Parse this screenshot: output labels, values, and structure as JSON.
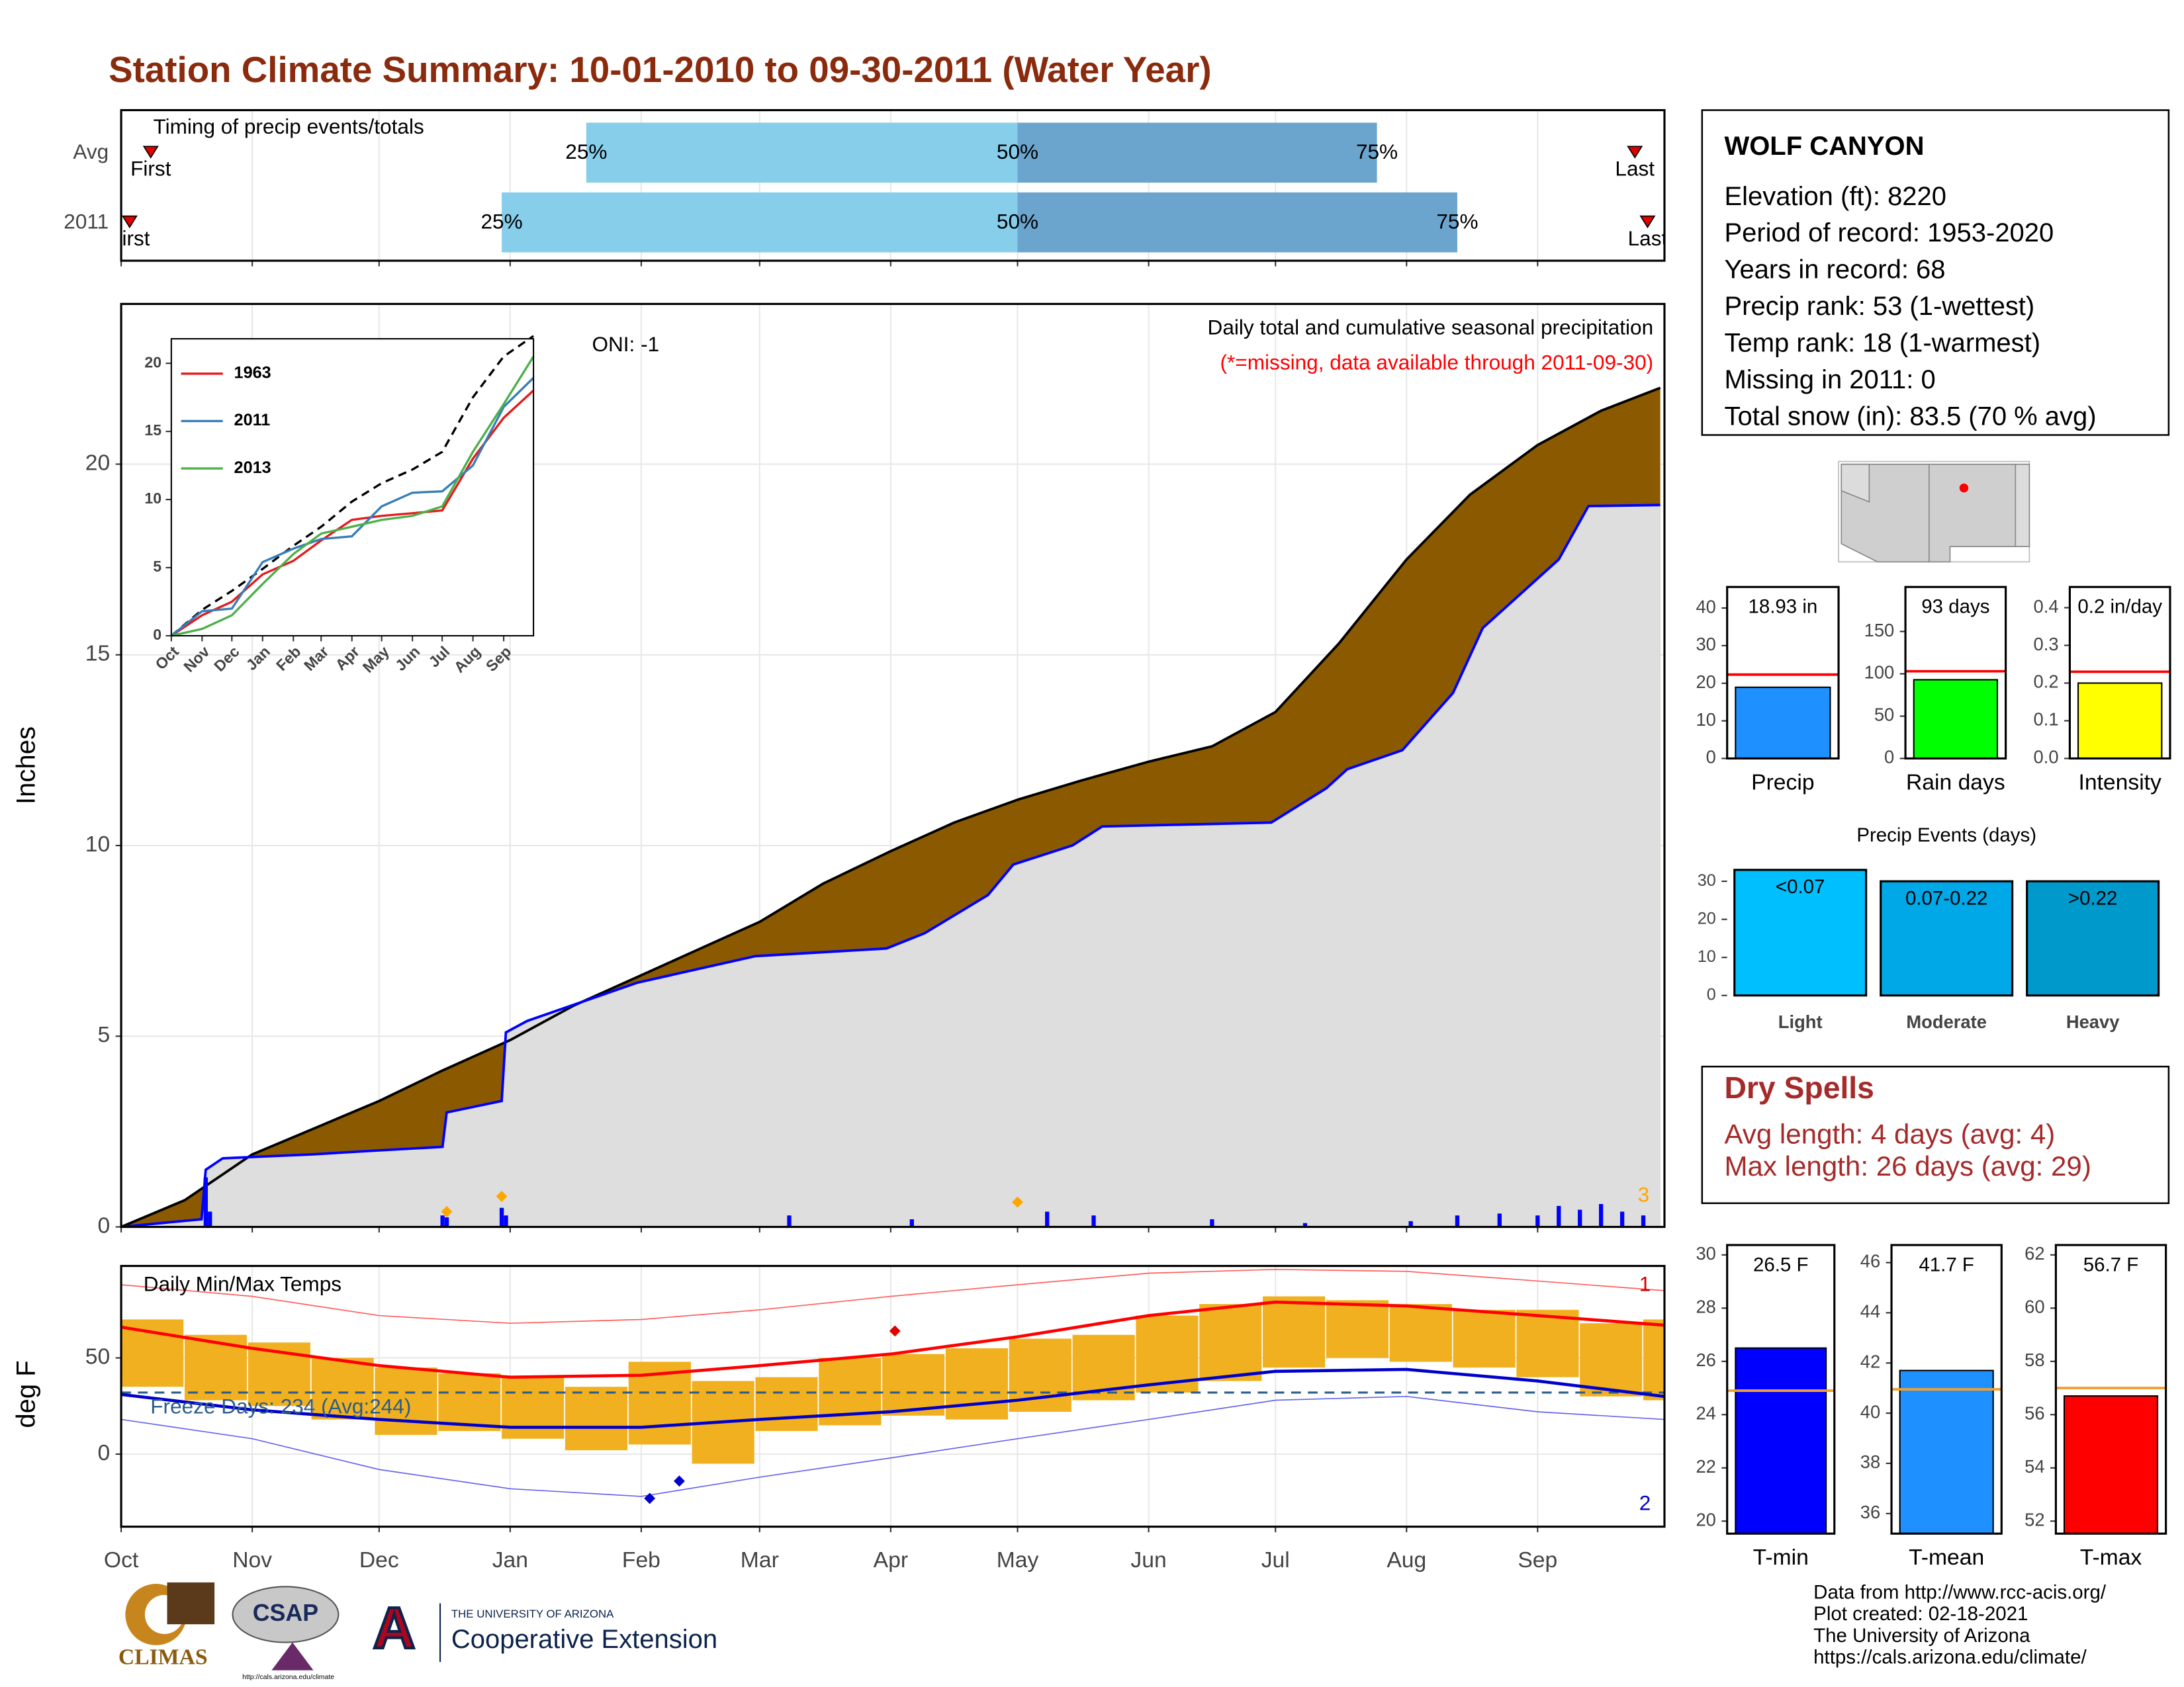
{
  "title": "Station Climate Summary: 10-01-2010 to 09-30-2011 (Water Year)",
  "station": {
    "name": "WOLF CANYON",
    "lines": [
      "Elevation (ft): 8220",
      "Period of record: 1953-2020",
      "Years in record: 68",
      "Precip rank: 53 (1-wettest)",
      "Temp rank: 18 (1-warmest)",
      "Missing in 2011: 0",
      "Total snow (in): 83.5 (70 % avg)"
    ]
  },
  "dry_spells": {
    "title": "Dry Spells",
    "lines": [
      "Avg length: 4 days (avg: 4)",
      "Max length: 26 days (avg: 29)"
    ]
  },
  "footer": {
    "logos": [
      "CLIMAS",
      "CSAP",
      "http://cals.arizona.edu/climate",
      "A",
      "THE UNIVERSITY OF ARIZONA",
      "Cooperative Extension"
    ],
    "credits": [
      "Data from http://www.rcc-acis.org/",
      "Plot created: 02-18-2021",
      "The University of Arizona",
      "https://cals.arizona.edu/climate/"
    ]
  },
  "chart_data": [
    {
      "type": "timing",
      "title": "Timing of precip events/totals",
      "xlim": [
        0,
        365
      ],
      "categories": [
        "Avg",
        "2011"
      ],
      "first": [
        7,
        2
      ],
      "p25": [
        110,
        90
      ],
      "p50": [
        212,
        212
      ],
      "p75": [
        297,
        316
      ],
      "last": [
        358,
        361
      ],
      "first_label": "First",
      "last_label": "Last",
      "percent_labels": [
        "25%",
        "50%",
        "75%"
      ],
      "colors": [
        "#87CEEB",
        "#6BA5CE"
      ],
      "marker_color": "#E00000"
    },
    {
      "type": "area",
      "xlim": [
        0,
        365
      ],
      "ylim": [
        0,
        24.2
      ],
      "yticks": [
        0,
        5,
        10,
        15,
        20
      ],
      "grid": true,
      "y_label": "Inches",
      "oni": "ONI: -1",
      "subtitle": "Daily total and cumulative seasonal precipitation",
      "note": "(*=missing, data available through 2011-09-30)",
      "corner_label": "3",
      "series": [
        {
          "fill": "#8B5A00",
          "color": "#000000",
          "x": [
            0,
            15,
            31,
            46,
            61,
            76,
            92,
            107,
            123,
            137,
            151,
            166,
            182,
            197,
            212,
            227,
            243,
            258,
            273,
            288,
            304,
            319,
            335,
            350,
            364
          ],
          "values": [
            0,
            0.7,
            1.9,
            2.6,
            3.3,
            4.1,
            4.9,
            5.8,
            6.6,
            7.3,
            8.0,
            9.0,
            9.85,
            10.6,
            11.2,
            11.7,
            12.2,
            12.6,
            13.5,
            15.3,
            17.5,
            19.2,
            20.5,
            21.4,
            22.0
          ]
        },
        {
          "fill": "#DEDEDE",
          "color": "#0000FF",
          "x": [
            0,
            19,
            20,
            24,
            45,
            60,
            76,
            77,
            90,
            91,
            96,
            122,
            150,
            181,
            190,
            205,
            211,
            225,
            232,
            272,
            285,
            290,
            303,
            315,
            322,
            333,
            340,
            347,
            364
          ],
          "values": [
            0,
            0.2,
            1.5,
            1.8,
            1.9,
            2.0,
            2.1,
            3.0,
            3.3,
            5.1,
            5.4,
            6.4,
            7.1,
            7.3,
            7.7,
            8.7,
            9.5,
            10.0,
            10.5,
            10.6,
            11.5,
            12.0,
            12.5,
            14.0,
            15.7,
            16.8,
            17.5,
            18.9,
            18.93
          ]
        }
      ],
      "daily": {
        "color": "#0000FF",
        "x": [
          20,
          21,
          76,
          77,
          90,
          91,
          158,
          187,
          219,
          230,
          258,
          280,
          305,
          316,
          326,
          335,
          340,
          345,
          350,
          355,
          360
        ],
        "values": [
          1.3,
          0.4,
          0.3,
          0.25,
          0.5,
          0.3,
          0.3,
          0.2,
          0.4,
          0.3,
          0.2,
          0.1,
          0.15,
          0.3,
          0.35,
          0.3,
          0.55,
          0.45,
          0.6,
          0.4,
          0.3
        ]
      },
      "markers": {
        "color": "#FFA500",
        "x": [
          77,
          90,
          212
        ],
        "values": [
          0.4,
          0.8,
          0.65
        ]
      }
    },
    {
      "type": "line",
      "xlim": [
        0,
        365
      ],
      "ylim": [
        0,
        21.8
      ],
      "yticks": [
        0,
        5,
        10,
        15,
        20
      ],
      "xticks": [
        {
          "value": 0,
          "label": "Oct"
        },
        {
          "value": 31,
          "label": "Nov"
        },
        {
          "value": 61,
          "label": "Dec"
        },
        {
          "value": 92,
          "label": "Jan"
        },
        {
          "value": 123,
          "label": "Feb"
        },
        {
          "value": 151,
          "label": "Mar"
        },
        {
          "value": 182,
          "label": "Apr"
        },
        {
          "value": 212,
          "label": "May"
        },
        {
          "value": 243,
          "label": "Jun"
        },
        {
          "value": 273,
          "label": "Jul"
        },
        {
          "value": 304,
          "label": "Aug"
        },
        {
          "value": 335,
          "label": "Sep"
        }
      ],
      "x": [
        0,
        31,
        61,
        92,
        123,
        151,
        182,
        212,
        243,
        273,
        304,
        335,
        365
      ],
      "series": [
        {
          "color": "#000000",
          "dash": true,
          "values": [
            0,
            1.9,
            3.3,
            4.9,
            6.6,
            8.0,
            9.85,
            11.2,
            12.2,
            13.5,
            17.5,
            20.5,
            22.0
          ]
        },
        {
          "name": "1963",
          "color": "#E41A1C",
          "values": [
            0,
            1.5,
            2.5,
            4.5,
            5.5,
            7.0,
            8.5,
            8.8,
            9.0,
            9.2,
            13.0,
            16.0,
            18.0
          ]
        },
        {
          "name": "2011",
          "color": "#377EB8",
          "values": [
            0,
            1.8,
            2.0,
            5.4,
            6.4,
            7.1,
            7.3,
            9.5,
            10.5,
            10.6,
            12.5,
            16.8,
            18.93
          ]
        },
        {
          "name": "2013",
          "color": "#4DAF4A",
          "values": [
            0,
            0.5,
            1.5,
            3.8,
            6.0,
            7.5,
            8.0,
            8.5,
            8.8,
            9.5,
            13.5,
            17.0,
            20.5
          ]
        }
      ]
    },
    {
      "type": "temps",
      "title": "Daily Min/Max Temps",
      "y_label": "deg F",
      "xlim": [
        0,
        365
      ],
      "ylim": [
        -37.7,
        97.8
      ],
      "yticks": [
        0,
        50
      ],
      "grid": true,
      "xticks": [
        {
          "value": 0,
          "label": "Oct"
        },
        {
          "value": 31,
          "label": "Nov"
        },
        {
          "value": 61,
          "label": "Dec"
        },
        {
          "value": 92,
          "label": "Jan"
        },
        {
          "value": 123,
          "label": "Feb"
        },
        {
          "value": 151,
          "label": "Mar"
        },
        {
          "value": 182,
          "label": "Apr"
        },
        {
          "value": 212,
          "label": "May"
        },
        {
          "value": 243,
          "label": "Jun"
        },
        {
          "value": 273,
          "label": "Jul"
        },
        {
          "value": 304,
          "label": "Aug"
        },
        {
          "value": 335,
          "label": "Sep"
        }
      ],
      "freeze": 32,
      "freeze_label": "Freeze Days: 234 (Avg:244)",
      "freeze_color": "#2B5C8A",
      "corner_labels": [
        "1",
        "2"
      ],
      "bars": {
        "color": "#F0B020",
        "x": [
          0,
          15,
          30,
          45,
          60,
          75,
          90,
          105,
          120,
          135,
          150,
          165,
          180,
          195,
          210,
          225,
          240,
          255,
          270,
          285,
          300,
          315,
          330,
          345,
          360
        ],
        "low": [
          35,
          28,
          25,
          18,
          10,
          12,
          8,
          2,
          5,
          -5,
          12,
          15,
          20,
          18,
          22,
          28,
          32,
          38,
          45,
          50,
          48,
          45,
          40,
          30,
          28
        ],
        "high": [
          70,
          62,
          58,
          50,
          45,
          42,
          40,
          35,
          48,
          38,
          40,
          50,
          52,
          55,
          60,
          62,
          72,
          78,
          82,
          80,
          78,
          75,
          75,
          68,
          70
        ]
      },
      "x": [
        0,
        31,
        61,
        92,
        123,
        151,
        182,
        212,
        243,
        273,
        304,
        335,
        365
      ],
      "series": [
        {
          "color": "#FF6060",
          "thin": true,
          "values": [
            88,
            82,
            72,
            68,
            70,
            75,
            82,
            88,
            94,
            96,
            95,
            90,
            85
          ]
        },
        {
          "color": "#6666EE",
          "thin": true,
          "values": [
            18,
            8,
            -8,
            -18,
            -22,
            -12,
            -2,
            8,
            18,
            28,
            30,
            22,
            18
          ]
        },
        {
          "color": "#FF0000",
          "values": [
            66,
            55,
            46,
            40,
            41,
            46,
            52,
            61,
            72,
            79,
            77,
            72,
            67
          ]
        },
        {
          "color": "#0000CC",
          "values": [
            31,
            23,
            18,
            14,
            14,
            18,
            22,
            28,
            36,
            43,
            44,
            38,
            30
          ]
        }
      ],
      "extremes": {
        "x": [
          183,
          125,
          132
        ],
        "values": [
          64,
          -23,
          -14
        ],
        "colors": [
          "#E00000",
          "#0000CC",
          "#0000CC"
        ]
      }
    },
    {
      "type": "single-bar",
      "category": "Precip",
      "value": 18.93,
      "value_label": "18.93 in",
      "avg": 22.3,
      "ylim": [
        0,
        45.6
      ],
      "yticks": [
        0,
        10,
        20,
        30,
        40
      ],
      "color": "#1E90FF",
      "avg_color": "#FF0000"
    },
    {
      "type": "single-bar",
      "category": "Rain days",
      "value": 93,
      "value_label": "93 days",
      "avg": 103,
      "ylim": [
        0,
        202.6
      ],
      "yticks": [
        0,
        50,
        100,
        150
      ],
      "color": "#00FF00",
      "avg_color": "#FF0000"
    },
    {
      "type": "single-bar",
      "category": "Intensity",
      "value": 0.2,
      "value_label": "0.2 in/day",
      "avg": 0.23,
      "ylim": [
        0,
        0.455
      ],
      "yticks": [
        {
          "value": 0,
          "label": "0.0"
        },
        {
          "value": 0.1,
          "label": "0.1"
        },
        {
          "value": 0.2,
          "label": "0.2"
        },
        {
          "value": 0.3,
          "label": "0.3"
        },
        {
          "value": 0.4,
          "label": "0.4"
        }
      ],
      "color": "#FFFF00",
      "avg_color": "#FF0000"
    },
    {
      "type": "bar",
      "title": "Precip Events (days)",
      "categories": [
        "Light",
        "Moderate",
        "Heavy"
      ],
      "values": [
        33,
        30,
        30
      ],
      "value_labels": [
        "<0.07",
        "0.07-0.22",
        ">0.22"
      ],
      "ylim": [
        0,
        33.7
      ],
      "yticks": [
        0,
        10,
        20,
        30
      ],
      "colors": [
        "#00BFFF",
        "#00A8E8",
        "#0099CC"
      ]
    },
    {
      "type": "single-bar",
      "category": "T-min",
      "value": 26.5,
      "value_label": "26.5 F",
      "avg": 24.9,
      "ylim": [
        19.53,
        30.37
      ],
      "yticks": [
        20,
        22,
        24,
        26,
        28,
        30
      ],
      "color": "#0000FF",
      "avg_color": "#F0A030"
    },
    {
      "type": "single-bar",
      "category": "T-mean",
      "value": 41.7,
      "value_label": "41.7 F",
      "avg": 40.95,
      "ylim": [
        35.2,
        46.7
      ],
      "yticks": [
        36,
        38,
        40,
        42,
        44,
        46
      ],
      "color": "#1E90FF",
      "avg_color": "#F0A030"
    },
    {
      "type": "single-bar",
      "category": "T-max",
      "value": 56.7,
      "value_label": "56.7 F",
      "avg": 57.0,
      "ylim": [
        51.53,
        62.37
      ],
      "yticks": [
        52,
        54,
        56,
        58,
        60,
        62
      ],
      "color": "#FF0000",
      "avg_color": "#F0A030"
    }
  ]
}
